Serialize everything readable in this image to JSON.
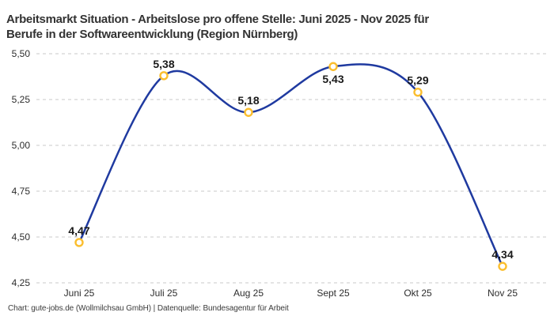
{
  "header": {
    "title_line1": "Arbeitsmarkt Situation - Arbeitslose pro offene Stelle: Juni 2025 - Nov 2025 für",
    "title_line2": "Berufe in der Softwareentwicklung (Region Nürnberg)"
  },
  "chart_data": {
    "type": "line",
    "title": "Arbeitsmarkt Situation - Arbeitslose pro offene Stelle: Juni 2025 - Nov 2025 für Berufe in der Softwareentwicklung (Region Nürnberg)",
    "categories": [
      "Juni 25",
      "Juli 25",
      "Aug 25",
      "Sept 25",
      "Okt 25",
      "Nov 25"
    ],
    "values": [
      4.47,
      5.38,
      5.18,
      5.43,
      5.29,
      4.34
    ],
    "data_labels": [
      "4,47",
      "5,38",
      "5,18",
      "5,43",
      "5,29",
      "4,34"
    ],
    "label_positions": [
      "above",
      "above",
      "above",
      "below",
      "above",
      "above"
    ],
    "y_ticks": [
      "5,50",
      "5,25",
      "5,00",
      "4,75",
      "4,50",
      "4,25"
    ],
    "y_tick_values": [
      5.5,
      5.25,
      5.0,
      4.75,
      4.5,
      4.25
    ],
    "ylim": [
      4.25,
      5.5
    ],
    "xlabel": "",
    "ylabel": "",
    "grid": "horizontal-dashed",
    "legend": "none",
    "smooth": true,
    "colors": {
      "line": "#1f3aa0",
      "marker_ring": "#fbbe2e",
      "marker_fill": "#ffffff",
      "gridline": "#c9c9c9",
      "tick_text": "#2d2d2d",
      "data_label_text": "#1a1a1a"
    }
  },
  "footer": {
    "credit": "Chart: gute-jobs.de (Wollmilchsau GmbH) | Datenquelle: Bundesagentur für Arbeit"
  }
}
